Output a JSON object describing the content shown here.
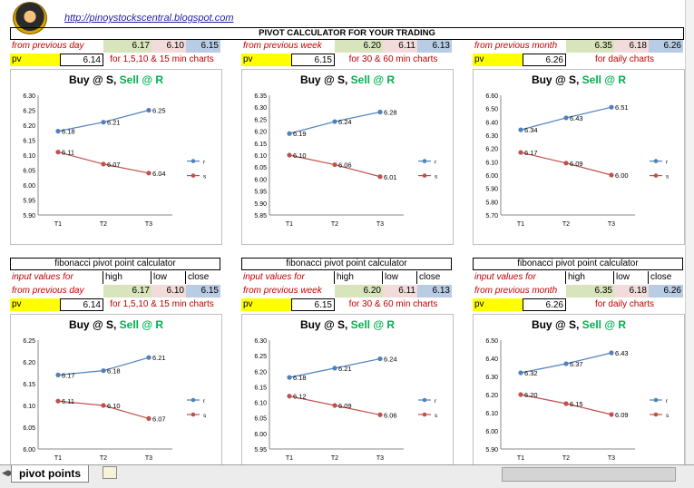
{
  "header": {
    "url": "http://pinoystockscentral.blogspot.com",
    "title": "PIVOT CALCULATOR FOR YOUR TRADING"
  },
  "legend": {
    "r": "r",
    "s": "s"
  },
  "chart_title": {
    "buy": "Buy @ S,",
    "sell": "Sell @ R"
  },
  "colors": {
    "r_line": "#4f81bd",
    "s_line": "#c0504d",
    "buy": "#000000",
    "sell": "#00b050"
  },
  "top_panels": [
    {
      "from_label": "from previous day",
      "h": "6.17",
      "l": "6.10",
      "c": "6.15",
      "pv_label": "pv",
      "pv": "6.14",
      "desc": "for 1,5,10 & 15 min charts",
      "chart_data": {
        "type": "line",
        "categories": [
          "T1",
          "T2",
          "T3"
        ],
        "series": [
          {
            "name": "r",
            "values": [
              6.18,
              6.21,
              6.25
            ]
          },
          {
            "name": "s",
            "values": [
              6.11,
              6.07,
              6.04
            ]
          }
        ],
        "ylim": [
          5.9,
          6.3
        ],
        "yticks": [
          "5.90",
          "5.95",
          "6.00",
          "6.05",
          "6.10",
          "6.15",
          "6.20",
          "6.25",
          "6.30"
        ],
        "labels_r": [
          "6.18",
          "6.21",
          "6.25"
        ],
        "labels_s": [
          "6.11",
          "6.07",
          "6.04"
        ]
      }
    },
    {
      "from_label": "from previous week",
      "h": "6.20",
      "l": "6.11",
      "c": "6.13",
      "pv_label": "pv",
      "pv": "6.15",
      "desc": "for 30 & 60 min charts",
      "chart_data": {
        "type": "line",
        "categories": [
          "T1",
          "T2",
          "T3"
        ],
        "series": [
          {
            "name": "r",
            "values": [
              6.19,
              6.24,
              6.28
            ]
          },
          {
            "name": "s",
            "values": [
              6.1,
              6.06,
              6.01
            ]
          }
        ],
        "ylim": [
          5.85,
          6.35
        ],
        "yticks": [
          "5.85",
          "5.90",
          "5.95",
          "6.00",
          "6.05",
          "6.10",
          "6.15",
          "6.20",
          "6.25",
          "6.30",
          "6.35"
        ],
        "labels_r": [
          "6.19",
          "6.24",
          "6.28"
        ],
        "labels_s": [
          "6.10",
          "6.06",
          "6.01"
        ]
      }
    },
    {
      "from_label": "from previous month",
      "h": "6.35",
      "l": "6.18",
      "c": "6.26",
      "pv_label": "pv",
      "pv": "6.26",
      "desc": "for daily charts",
      "chart_data": {
        "type": "line",
        "categories": [
          "T1",
          "T2",
          "T3"
        ],
        "series": [
          {
            "name": "r",
            "values": [
              6.34,
              6.43,
              6.51
            ]
          },
          {
            "name": "s",
            "values": [
              6.17,
              6.09,
              6.0
            ]
          }
        ],
        "ylim": [
          5.7,
          6.6
        ],
        "yticks": [
          "5.70",
          "5.80",
          "5.90",
          "6.00",
          "6.10",
          "6.20",
          "6.30",
          "6.40",
          "6.50",
          "6.60"
        ],
        "labels_r": [
          "6.34",
          "6.43",
          "6.51"
        ],
        "labels_s": [
          "6.17",
          "6.09",
          "6.00"
        ]
      }
    }
  ],
  "fib_panels": [
    {
      "title": "fibonacci pivot point calculator",
      "input_label": "input values for",
      "col_high": "high",
      "col_low": "low",
      "col_close": "close",
      "from_label": "from previous day",
      "h": "6.17",
      "l": "6.10",
      "c": "6.15",
      "pv_label": "pv",
      "pv": "6.14",
      "desc": "for 1,5,10 & 15 min charts",
      "chart_data": {
        "type": "line",
        "categories": [
          "T1",
          "T2",
          "T3"
        ],
        "series": [
          {
            "name": "r",
            "values": [
              6.17,
              6.18,
              6.21
            ]
          },
          {
            "name": "s",
            "values": [
              6.11,
              6.1,
              6.07
            ]
          }
        ],
        "ylim": [
          6.0,
          6.25
        ],
        "yticks": [
          "6.00",
          "6.05",
          "6.10",
          "6.15",
          "6.20",
          "6.25"
        ],
        "labels_r": [
          "6.17",
          "6.18",
          "6.21"
        ],
        "labels_s": [
          "6.11",
          "6.10",
          "6.07"
        ]
      }
    },
    {
      "title": "fibonacci pivot point calculator",
      "input_label": "input values for",
      "col_high": "high",
      "col_low": "low",
      "col_close": "close",
      "from_label": "from previous week",
      "h": "6.20",
      "l": "6.11",
      "c": "6.13",
      "pv_label": "pv",
      "pv": "6.15",
      "desc": "for 30 & 60 min charts",
      "chart_data": {
        "type": "line",
        "categories": [
          "T1",
          "T2",
          "T3"
        ],
        "series": [
          {
            "name": "r",
            "values": [
              6.18,
              6.21,
              6.24
            ]
          },
          {
            "name": "s",
            "values": [
              6.12,
              6.09,
              6.06
            ]
          }
        ],
        "ylim": [
          5.95,
          6.3
        ],
        "yticks": [
          "5.95",
          "6.00",
          "6.05",
          "6.10",
          "6.15",
          "6.20",
          "6.25",
          "6.30"
        ],
        "labels_r": [
          "6.18",
          "6.21",
          "6.24"
        ],
        "labels_s": [
          "6.12",
          "6.09",
          "6.06"
        ]
      }
    },
    {
      "title": "fibonacci pivot point calculator",
      "input_label": "input values for",
      "col_high": "high",
      "col_low": "low",
      "col_close": "close",
      "from_label": "from previous month",
      "h": "6.35",
      "l": "6.18",
      "c": "6.26",
      "pv_label": "pv",
      "pv": "6.26",
      "desc": "for daily charts",
      "chart_data": {
        "type": "line",
        "categories": [
          "T1",
          "T2",
          "T3"
        ],
        "series": [
          {
            "name": "r",
            "values": [
              6.32,
              6.37,
              6.43
            ]
          },
          {
            "name": "s",
            "values": [
              6.2,
              6.15,
              6.09
            ]
          }
        ],
        "ylim": [
          5.9,
          6.5
        ],
        "yticks": [
          "5.90",
          "6.00",
          "6.10",
          "6.20",
          "6.30",
          "6.40",
          "6.50"
        ],
        "labels_r": [
          "6.32",
          "6.37",
          "6.43"
        ],
        "labels_s": [
          "6.20",
          "6.15",
          "6.09"
        ]
      }
    }
  ],
  "sheet_tab": {
    "label": "pivot points"
  }
}
